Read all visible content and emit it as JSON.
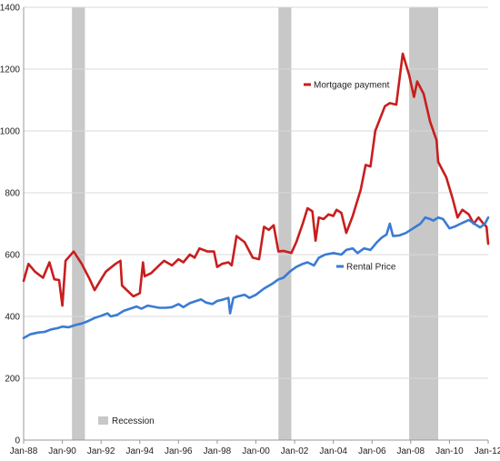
{
  "chart_data": {
    "type": "line",
    "title": "",
    "xlabel": "",
    "ylabel": "",
    "ylim": [
      0,
      1400
    ],
    "yticks": [
      "0",
      "200",
      "400",
      "600",
      "800",
      "1000",
      "1200",
      "1400"
    ],
    "xticks": [
      "Jan-88",
      "Jan-90",
      "Jan-92",
      "Jan-94",
      "Jan-96",
      "Jan-98",
      "Jan-00",
      "Jan-02",
      "Jan-04",
      "Jan-06",
      "Jan-08",
      "Jan-10",
      "Jan-12"
    ],
    "xlim": [
      "1988-01",
      "2012-01"
    ],
    "grid": "horizontal",
    "colors": {
      "mortgage": "#c81e1e",
      "rental": "#3a7bd5",
      "recession": "#c8c8c8",
      "grid": "#d9d9d9",
      "axis": "#999999"
    },
    "recessions": [
      {
        "start": "1990-07",
        "end": "1991-03"
      },
      {
        "start": "2001-03",
        "end": "2001-11"
      },
      {
        "start": "2007-12",
        "end": "2009-06"
      }
    ],
    "series": [
      {
        "name": "Mortgage payment",
        "key": "mortgage",
        "points": [
          [
            "1988-01",
            515
          ],
          [
            "1988-04",
            570
          ],
          [
            "1988-08",
            545
          ],
          [
            "1989-01",
            525
          ],
          [
            "1989-05",
            575
          ],
          [
            "1989-08",
            520
          ],
          [
            "1989-11",
            518
          ],
          [
            "1990-01",
            435
          ],
          [
            "1990-03",
            580
          ],
          [
            "1990-08",
            610
          ],
          [
            "1991-01",
            570
          ],
          [
            "1991-06",
            520
          ],
          [
            "1991-09",
            485
          ],
          [
            "1992-01",
            520
          ],
          [
            "1992-04",
            545
          ],
          [
            "1992-10",
            570
          ],
          [
            "1993-01",
            580
          ],
          [
            "1993-02",
            500
          ],
          [
            "1993-06",
            480
          ],
          [
            "1993-09",
            465
          ],
          [
            "1994-01",
            475
          ],
          [
            "1994-03",
            575
          ],
          [
            "1994-04",
            530
          ],
          [
            "1994-08",
            540
          ],
          [
            "1995-01",
            565
          ],
          [
            "1995-04",
            580
          ],
          [
            "1995-09",
            565
          ],
          [
            "1996-01",
            585
          ],
          [
            "1996-04",
            575
          ],
          [
            "1996-08",
            600
          ],
          [
            "1996-11",
            590
          ],
          [
            "1997-02",
            620
          ],
          [
            "1997-07",
            610
          ],
          [
            "1997-11",
            610
          ],
          [
            "1998-01",
            560
          ],
          [
            "1998-04",
            570
          ],
          [
            "1998-08",
            575
          ],
          [
            "1998-10",
            565
          ],
          [
            "1999-01",
            660
          ],
          [
            "1999-06",
            640
          ],
          [
            "1999-11",
            590
          ],
          [
            "2000-03",
            585
          ],
          [
            "2000-06",
            690
          ],
          [
            "2000-09",
            680
          ],
          [
            "2000-12",
            695
          ],
          [
            "2001-03",
            610
          ],
          [
            "2001-06",
            612
          ],
          [
            "2001-11",
            605
          ],
          [
            "2002-02",
            640
          ],
          [
            "2002-06",
            700
          ],
          [
            "2002-09",
            750
          ],
          [
            "2002-12",
            740
          ],
          [
            "2003-02",
            645
          ],
          [
            "2003-04",
            720
          ],
          [
            "2003-07",
            715
          ],
          [
            "2003-10",
            730
          ],
          [
            "2004-01",
            725
          ],
          [
            "2004-03",
            745
          ],
          [
            "2004-06",
            735
          ],
          [
            "2004-09",
            670
          ],
          [
            "2005-01",
            725
          ],
          [
            "2005-06",
            810
          ],
          [
            "2005-09",
            890
          ],
          [
            "2005-12",
            885
          ],
          [
            "2006-03",
            1000
          ],
          [
            "2006-09",
            1080
          ],
          [
            "2006-12",
            1090
          ],
          [
            "2007-04",
            1085
          ],
          [
            "2007-08",
            1250
          ],
          [
            "2007-12",
            1180
          ],
          [
            "2008-03",
            1110
          ],
          [
            "2008-05",
            1160
          ],
          [
            "2008-09",
            1120
          ],
          [
            "2009-01",
            1030
          ],
          [
            "2009-05",
            970
          ],
          [
            "2009-06",
            900
          ],
          [
            "2009-11",
            850
          ],
          [
            "2010-03",
            780
          ],
          [
            "2010-06",
            720
          ],
          [
            "2010-09",
            745
          ],
          [
            "2011-01",
            730
          ],
          [
            "2011-04",
            700
          ],
          [
            "2011-07",
            720
          ],
          [
            "2011-10",
            700
          ],
          [
            "2011-12",
            690
          ],
          [
            "2012-01",
            635
          ]
        ]
      },
      {
        "name": "Rental Price",
        "key": "rental",
        "points": [
          [
            "1988-01",
            330
          ],
          [
            "1988-05",
            342
          ],
          [
            "1988-10",
            348
          ],
          [
            "1989-02",
            350
          ],
          [
            "1989-06",
            358
          ],
          [
            "1989-10",
            362
          ],
          [
            "1990-01",
            367
          ],
          [
            "1990-05",
            365
          ],
          [
            "1990-09",
            372
          ],
          [
            "1991-01",
            377
          ],
          [
            "1991-05",
            385
          ],
          [
            "1991-09",
            395
          ],
          [
            "1992-01",
            402
          ],
          [
            "1992-05",
            410
          ],
          [
            "1992-07",
            400
          ],
          [
            "1992-11",
            405
          ],
          [
            "1993-03",
            418
          ],
          [
            "1993-07",
            425
          ],
          [
            "1993-11",
            432
          ],
          [
            "1994-02",
            425
          ],
          [
            "1994-06",
            435
          ],
          [
            "1994-09",
            432
          ],
          [
            "1995-01",
            428
          ],
          [
            "1995-05",
            428
          ],
          [
            "1995-09",
            430
          ],
          [
            "1996-01",
            440
          ],
          [
            "1996-04",
            430
          ],
          [
            "1996-08",
            443
          ],
          [
            "1996-12",
            450
          ],
          [
            "1997-03",
            455
          ],
          [
            "1997-06",
            445
          ],
          [
            "1997-10",
            440
          ],
          [
            "1998-01",
            450
          ],
          [
            "1998-05",
            455
          ],
          [
            "1998-08",
            460
          ],
          [
            "1998-09",
            410
          ],
          [
            "1998-11",
            460
          ],
          [
            "1999-02",
            465
          ],
          [
            "1999-06",
            470
          ],
          [
            "1999-09",
            460
          ],
          [
            "2000-01",
            470
          ],
          [
            "2000-06",
            490
          ],
          [
            "2000-11",
            505
          ],
          [
            "2001-03",
            520
          ],
          [
            "2001-06",
            525
          ],
          [
            "2001-10",
            545
          ],
          [
            "2002-02",
            560
          ],
          [
            "2002-06",
            570
          ],
          [
            "2002-09",
            575
          ],
          [
            "2003-01",
            565
          ],
          [
            "2003-04",
            590
          ],
          [
            "2003-08",
            600
          ],
          [
            "2004-01",
            605
          ],
          [
            "2004-06",
            600
          ],
          [
            "2004-09",
            615
          ],
          [
            "2005-01",
            620
          ],
          [
            "2005-04",
            605
          ],
          [
            "2005-08",
            620
          ],
          [
            "2005-12",
            615
          ],
          [
            "2006-04",
            640
          ],
          [
            "2006-07",
            655
          ],
          [
            "2006-10",
            665
          ],
          [
            "2006-12",
            700
          ],
          [
            "2007-02",
            660
          ],
          [
            "2007-06",
            662
          ],
          [
            "2007-10",
            670
          ],
          [
            "2008-01",
            680
          ],
          [
            "2008-04",
            690
          ],
          [
            "2008-07",
            700
          ],
          [
            "2008-10",
            720
          ],
          [
            "2009-01",
            715
          ],
          [
            "2009-03",
            710
          ],
          [
            "2009-06",
            720
          ],
          [
            "2009-09",
            715
          ],
          [
            "2010-01",
            685
          ],
          [
            "2010-04",
            690
          ],
          [
            "2010-08",
            700
          ],
          [
            "2011-01",
            712
          ],
          [
            "2011-05",
            698
          ],
          [
            "2011-08",
            688
          ],
          [
            "2011-11",
            700
          ],
          [
            "2012-01",
            720
          ]
        ]
      }
    ],
    "legend": {
      "placement": "inline",
      "recession_label": "Recession"
    }
  }
}
